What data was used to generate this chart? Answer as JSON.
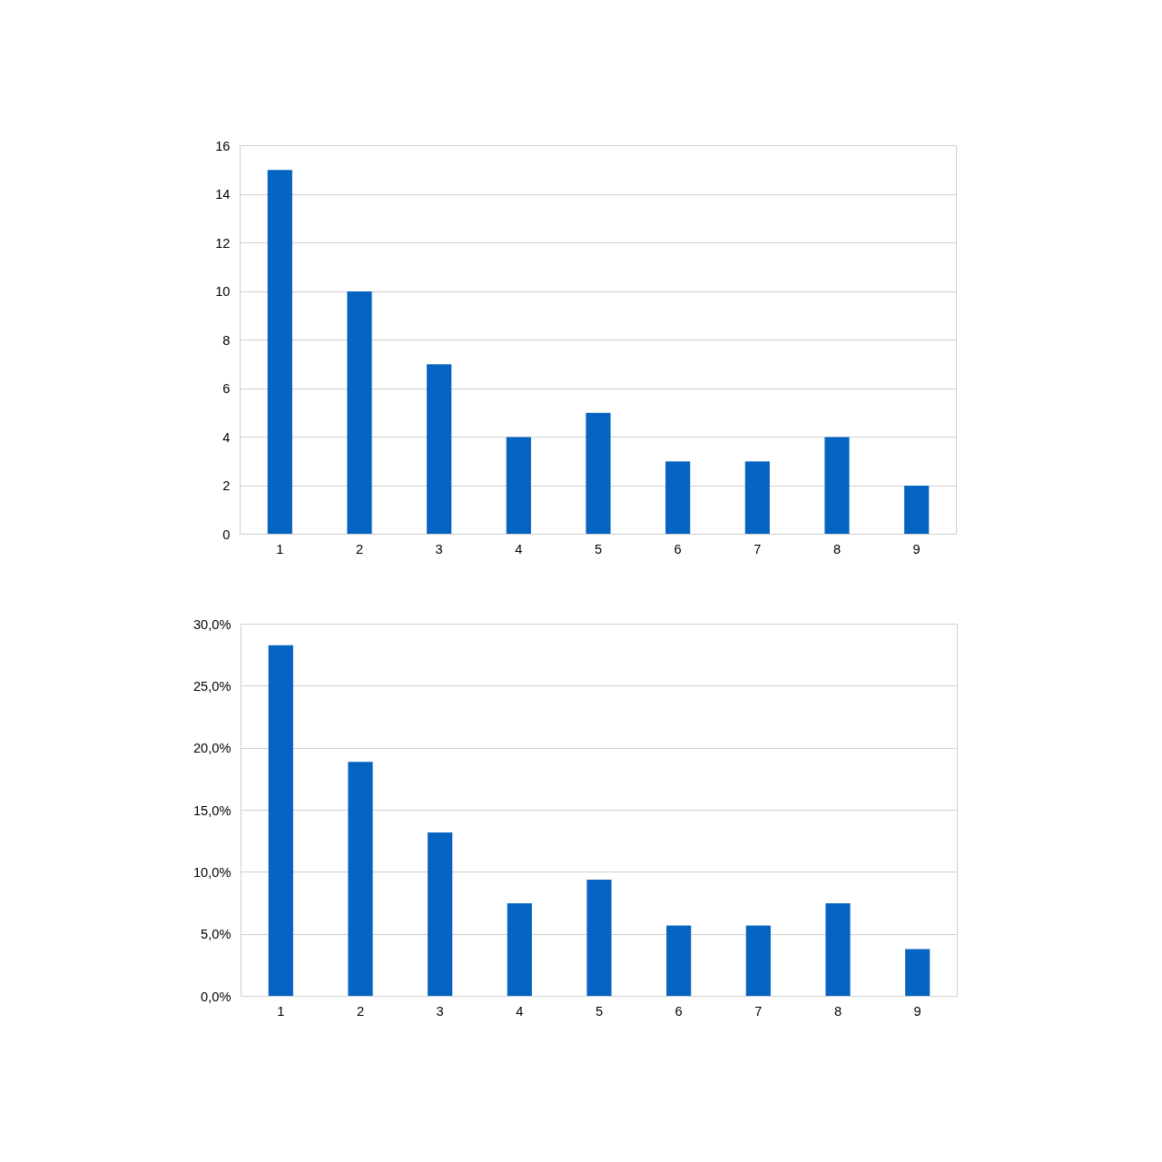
{
  "chart_data": [
    {
      "type": "bar",
      "categories": [
        "1",
        "2",
        "3",
        "4",
        "5",
        "6",
        "7",
        "8",
        "9"
      ],
      "values": [
        15,
        10,
        7,
        4,
        5,
        3,
        3,
        4,
        2
      ],
      "color": "#0563c1",
      "ylim": [
        0,
        16
      ],
      "yticks": [
        0,
        2,
        4,
        6,
        8,
        10,
        12,
        14,
        16
      ],
      "grid": "y"
    },
    {
      "type": "bar",
      "categories": [
        "1",
        "2",
        "3",
        "4",
        "5",
        "6",
        "7",
        "8",
        "9"
      ],
      "values": [
        28.3,
        18.9,
        13.2,
        7.5,
        9.4,
        5.7,
        5.7,
        7.5,
        3.8
      ],
      "color": "#0563c1",
      "ylim": [
        0,
        30
      ],
      "yticks": [
        {
          "value": 0,
          "label": "0,0%"
        },
        {
          "value": 5,
          "label": "5,0%"
        },
        {
          "value": 10,
          "label": "10,0%"
        },
        {
          "value": 15,
          "label": "15,0%"
        },
        {
          "value": 20,
          "label": "20,0%"
        },
        {
          "value": 25,
          "label": "25,0%"
        },
        {
          "value": 30,
          "label": "30,0%"
        }
      ],
      "grid": "y"
    }
  ]
}
